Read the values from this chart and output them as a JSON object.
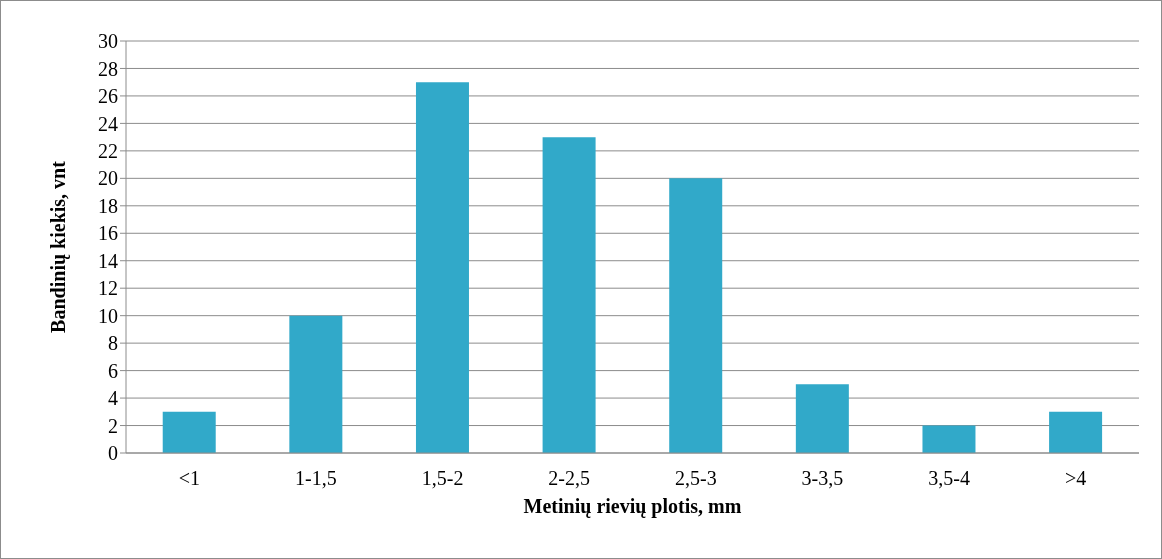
{
  "chart_data": {
    "type": "bar",
    "xlabel": "Metinių rievių plotis, mm",
    "ylabel": "Bandinių kiekis, vnt",
    "categories": [
      "<1",
      "1-1,5",
      "1,5-2",
      "2-2,5",
      "2,5-3",
      "3-3,5",
      "3,5-4",
      ">4"
    ],
    "values": [
      3,
      10,
      27,
      23,
      20,
      5,
      2,
      3
    ],
    "color": "#31a9c9",
    "ylim": [
      0,
      30
    ],
    "yticks": [
      0,
      2,
      4,
      6,
      8,
      10,
      12,
      14,
      16,
      18,
      20,
      22,
      24,
      26,
      28,
      30
    ],
    "grid": "y"
  }
}
